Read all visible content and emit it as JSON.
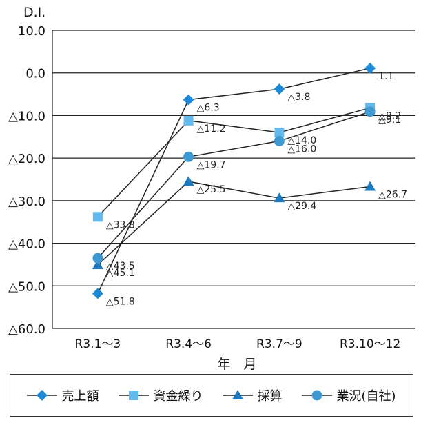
{
  "chart_data": {
    "type": "line",
    "ylabel": "D.I.",
    "xlabel": "年　月",
    "categories": [
      "R3.1～3",
      "R3.4～6",
      "R3.7～9",
      "R3.10～12"
    ],
    "ylim": [
      -60,
      10
    ],
    "yticks": [
      10,
      0,
      -10,
      -20,
      -30,
      -40,
      -50,
      -60
    ],
    "ytick_labels": [
      "10.0",
      "0.0",
      "△10.0",
      "△20.0",
      "△30.0",
      "△40.0",
      "△50.0",
      "△60.0"
    ],
    "grid": true,
    "legend_position": "bottom",
    "series": [
      {
        "name": "売上額",
        "marker": "diamond",
        "color": "#1c8ad6",
        "values": [
          -51.8,
          -6.3,
          -3.8,
          1.1
        ],
        "labels": [
          "△51.8",
          "△6.3",
          "△3.8",
          "1.1"
        ]
      },
      {
        "name": "資金繰り",
        "marker": "square",
        "color": "#63b9ec",
        "values": [
          -33.8,
          -11.2,
          -14.0,
          -8.2
        ],
        "labels": [
          "△33.8",
          "△11.2",
          "△14.0",
          "△8.2"
        ]
      },
      {
        "name": "採算",
        "marker": "triangle",
        "color": "#1b79bf",
        "values": [
          -45.1,
          -25.5,
          -29.4,
          -26.7
        ],
        "labels": [
          "△45.1",
          "△25.5",
          "△29.4",
          "△26.7"
        ]
      },
      {
        "name": "業況(自社)",
        "marker": "circle",
        "color": "#3e99d3",
        "values": [
          -43.5,
          -19.7,
          -16.0,
          -9.1
        ],
        "labels": [
          "△43.5",
          "△19.7",
          "△16.0",
          "△9.1"
        ]
      }
    ]
  }
}
